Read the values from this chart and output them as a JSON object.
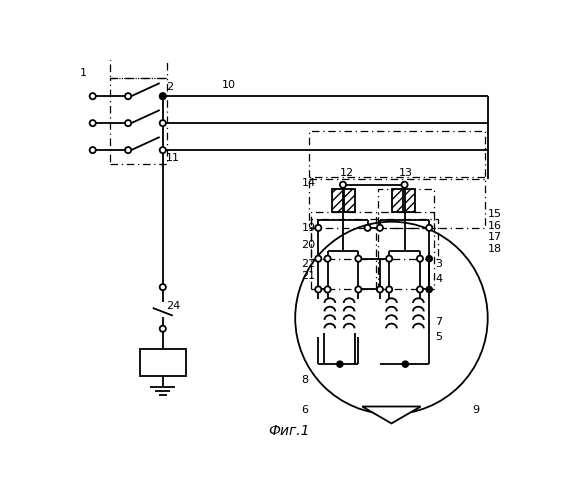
{
  "title": "Фиг.1",
  "bg_color": "#ffffff",
  "figsize": [
    5.64,
    5.0
  ],
  "dpi": 100,
  "lw": 1.3
}
